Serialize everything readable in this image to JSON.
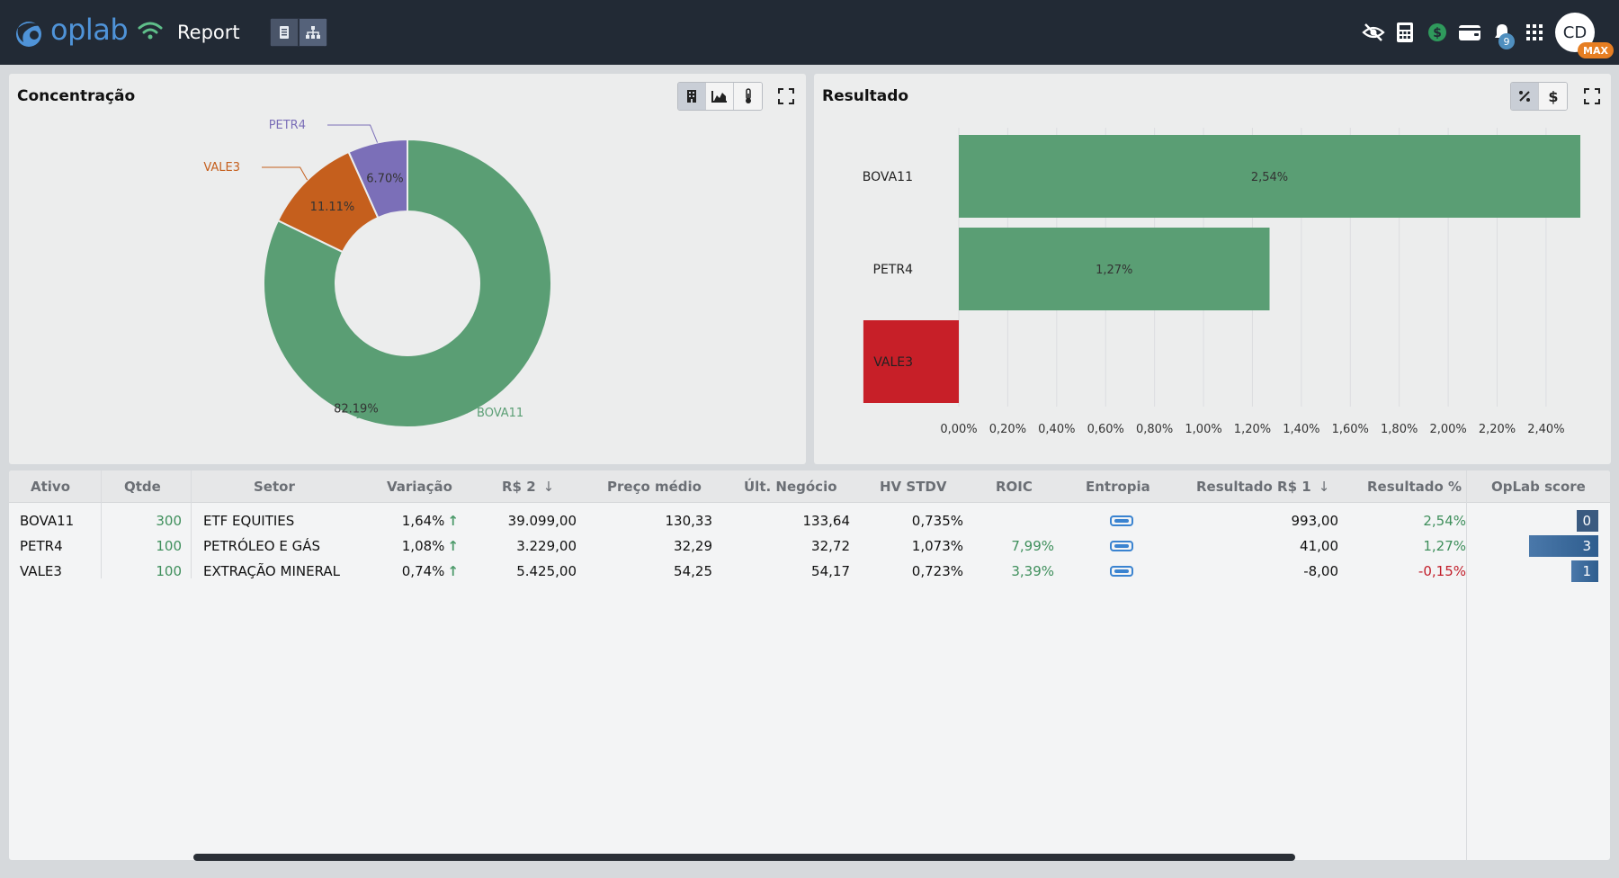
{
  "header": {
    "brand": "oplab",
    "title": "Report",
    "view_toggle": [
      "report-view",
      "tree-view"
    ],
    "notifications_count": "9",
    "avatar_initials": "CD",
    "plan_badge": "MAX",
    "icons": [
      "eye-slash-icon",
      "calculator-icon",
      "dollar-circle-icon",
      "wallet-icon",
      "bell-icon",
      "grid-icon"
    ]
  },
  "concentracao": {
    "title": "Concentração",
    "chart_data": {
      "type": "pie",
      "subtype": "donut",
      "slices": [
        {
          "label": "BOVA11",
          "value": 82.19,
          "value_label": "82.19%",
          "color": "#5a9e74"
        },
        {
          "label": "VALE3",
          "value": 11.11,
          "value_label": "11.11%",
          "color": "#c55f1d"
        },
        {
          "label": "PETR4",
          "value": 6.7,
          "value_label": "6.70%",
          "color": "#7b6fb8"
        }
      ]
    }
  },
  "resultado": {
    "title": "Resultado",
    "chart_data": {
      "type": "bar",
      "orientation": "horizontal",
      "categories": [
        "BOVA11",
        "PETR4",
        "VALE3"
      ],
      "values": [
        2.54,
        1.27,
        -0.15
      ],
      "value_labels": [
        "2,54%",
        "1,27%",
        ""
      ],
      "colors": [
        "#5a9e74",
        "#5a9e74",
        "#c71f28"
      ],
      "xlim": [
        -0.15,
        2.54
      ],
      "xticks": [
        "0,00%",
        "0,20%",
        "0,40%",
        "0,60%",
        "0,80%",
        "1,00%",
        "1,20%",
        "1,40%",
        "1,60%",
        "1,80%",
        "2,00%",
        "2,20%",
        "2,40%"
      ],
      "grid": true
    }
  },
  "table": {
    "headers": {
      "ativo": "Ativo",
      "qtde": "Qtde",
      "setor": "Setor",
      "variacao": "Variação",
      "rs2": "R$ 2",
      "preco_medio": "Preço médio",
      "ult_negocio": "Últ. Negócio",
      "hv_stdv": "HV STDV",
      "roic": "ROIC",
      "entropia": "Entropia",
      "resultado_rs1": "Resultado R$ 1",
      "resultado_pct": "Resultado %",
      "oplab_score": "OpLab score"
    },
    "rows": [
      {
        "ativo": "BOVA11",
        "qtde": "300",
        "setor": "ETF EQUITIES",
        "variacao": "1,64%",
        "rs2": "39.099,00",
        "preco_medio": "130,33",
        "ult_negocio": "133,64",
        "hv_stdv": "0,735%",
        "roic": "",
        "resultado_rs1": "993,00",
        "resultado_pct": "2,54%",
        "score": "0",
        "score_frac": 0.1
      },
      {
        "ativo": "PETR4",
        "qtde": "100",
        "setor": "PETRÓLEO E GÁS",
        "variacao": "1,08%",
        "rs2": "3.229,00",
        "preco_medio": "32,29",
        "ult_negocio": "32,72",
        "hv_stdv": "1,073%",
        "roic": "7,99%",
        "resultado_rs1": "41,00",
        "resultado_pct": "1,27%",
        "score": "3",
        "score_frac": 0.86
      },
      {
        "ativo": "VALE3",
        "qtde": "100",
        "setor": "EXTRAÇÃO MINERAL",
        "variacao": "0,74%",
        "rs2": "5.425,00",
        "preco_medio": "54,25",
        "ult_negocio": "54,17",
        "hv_stdv": "0,723%",
        "roic": "3,39%",
        "resultado_rs1": "-8,00",
        "resultado_pct": "-0,15%",
        "score": "1",
        "score_frac": 0.33
      }
    ]
  }
}
